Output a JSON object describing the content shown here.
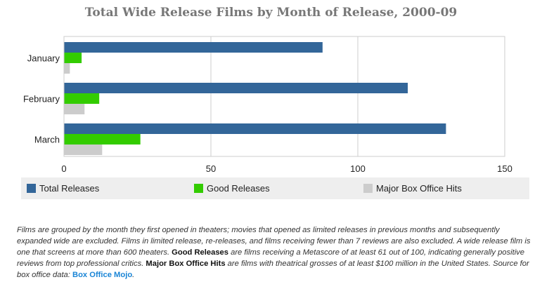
{
  "chart_data": {
    "type": "bar",
    "orientation": "horizontal",
    "title": "Total Wide Release Films by Month of Release, 2000-09",
    "categories": [
      "January",
      "February",
      "March"
    ],
    "series": [
      {
        "name": "Total Releases",
        "color": "#336699",
        "values": [
          88,
          117,
          130
        ]
      },
      {
        "name": "Good Releases",
        "color": "#33cc00",
        "values": [
          6,
          12,
          26
        ]
      },
      {
        "name": "Major Box Office Hits",
        "color": "#cccccc",
        "values": [
          2,
          7,
          13
        ]
      }
    ],
    "xlim": [
      0,
      150
    ],
    "xticks": [
      0,
      50,
      100,
      150
    ],
    "grid": true,
    "legend_position": "bottom"
  },
  "note": {
    "part1": "Films are grouped by the month they first opened in theaters; movies that opened as limited releases in previous months and subsequently expanded wide are excluded. Films in limited release, re-releases, and films receiving fewer than 7 reviews are also excluded. A wide release film is one that screens at more than 600 theaters. ",
    "good_label": "Good Releases",
    "part2": " are films receiving a Metascore of at least 61 out of 100, indicating generally positive reviews from top professional critics. ",
    "hits_label": "Major Box Office Hits",
    "part3": " are films with theatrical grosses of at least $100 million in the United States. Source for box office data: ",
    "source_link": "Box Office Mojo",
    "part4": "."
  }
}
